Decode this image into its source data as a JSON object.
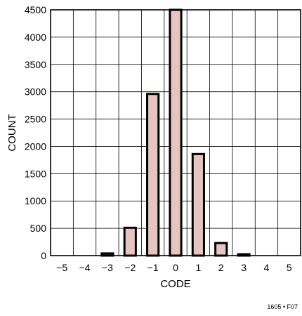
{
  "chart_data": {
    "type": "bar",
    "categories": [
      "−5",
      "−4",
      "−3",
      "−2",
      "−1",
      "0",
      "1",
      "2",
      "3",
      "4",
      "5"
    ],
    "values": [
      0,
      0,
      40,
      510,
      2960,
      4500,
      1860,
      230,
      25,
      0,
      0
    ],
    "xlabel": "CODE",
    "ylabel": "COUNT",
    "ylim": [
      0,
      4500
    ],
    "yticks": [
      "0",
      "500",
      "1000",
      "1500",
      "2000",
      "2500",
      "3000",
      "3500",
      "4000",
      "4500"
    ],
    "grid": true,
    "bar_color": "#e8c4be",
    "bar_stroke": "#000000"
  },
  "figure_id": "1605 • F07"
}
